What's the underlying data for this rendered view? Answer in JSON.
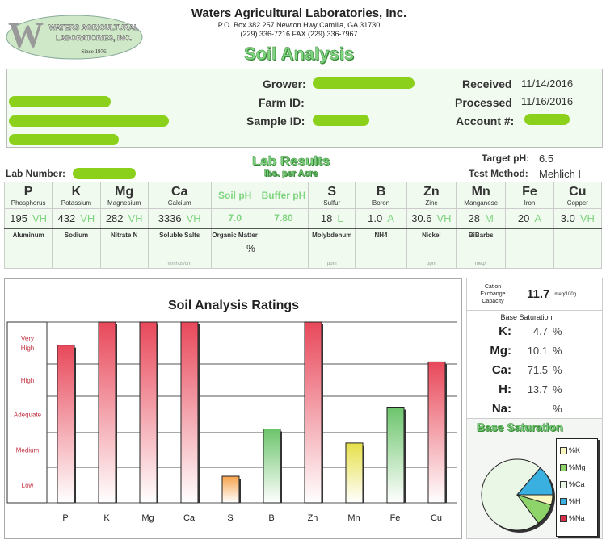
{
  "header": {
    "logo_letter": "W",
    "logo_line1": "WATERS AGRICULTURAL",
    "logo_line2": "LABORATORIES, INC.",
    "logo_since": "Since 1976",
    "company": "Waters Agricultural Laboratories, Inc.",
    "address": "P.O. Box 382  257 Newton Hwy   Camilla, GA  31730",
    "phone": "(229) 336-7216  FAX (229) 336-7967",
    "report_title": "Soil Analysis"
  },
  "info": {
    "grower_label": "Grower:",
    "farm_id_label": "Farm ID:",
    "sample_id_label": "Sample ID:",
    "received_label": "Received",
    "received": "11/14/2016",
    "processed_label": "Processed",
    "processed": "11/16/2016",
    "account_label": "Account #:"
  },
  "lab": {
    "title": "Lab Results",
    "subtitle": "lbs. per Acre",
    "lab_number_label": "Lab Number:",
    "target_ph_label": "Target pH:",
    "target_ph": "6.5",
    "test_method_label": "Test Method:",
    "test_method": "Mehlich I"
  },
  "nutrients": [
    {
      "sym": "P",
      "name": "Phosphorus",
      "value": "195",
      "rating": "VH"
    },
    {
      "sym": "K",
      "name": "Potassium",
      "value": "432",
      "rating": "VH"
    },
    {
      "sym": "Mg",
      "name": "Magnesium",
      "value": "282",
      "rating": "VH"
    },
    {
      "sym": "Ca",
      "name": "Calcium",
      "value": "3336",
      "rating": "VH"
    },
    {
      "sym": "Soil pH",
      "name": "",
      "value": "7.0",
      "rating": ""
    },
    {
      "sym": "Buffer pH",
      "name": "",
      "value": "7.80",
      "rating": ""
    },
    {
      "sym": "S",
      "name": "Sulfur",
      "value": "18",
      "rating": "L"
    },
    {
      "sym": "B",
      "name": "Boron",
      "value": "1.0",
      "rating": "A"
    },
    {
      "sym": "Zn",
      "name": "Zinc",
      "value": "30.6",
      "rating": "VH"
    },
    {
      "sym": "Mn",
      "name": "Manganese",
      "value": "28",
      "rating": "M"
    },
    {
      "sym": "Fe",
      "name": "Iron",
      "value": "20",
      "rating": "A"
    },
    {
      "sym": "Cu",
      "name": "Copper",
      "value": "3.0",
      "rating": "VH"
    }
  ],
  "secondary": [
    {
      "name": "Aluminum",
      "value": "",
      "unit": ""
    },
    {
      "name": "Sodium",
      "value": "",
      "unit": ""
    },
    {
      "name": "Nitrate N",
      "value": "",
      "unit": ""
    },
    {
      "name": "Soluble Salts",
      "value": "",
      "unit": "mmhos/cm"
    },
    {
      "name": "Organic Matter",
      "value": "%",
      "unit": ""
    },
    {
      "name": "",
      "value": "",
      "unit": ""
    },
    {
      "name": "Molybdenum",
      "value": "",
      "unit": "ppm"
    },
    {
      "name": "NH4",
      "value": "",
      "unit": ""
    },
    {
      "name": "Nickel",
      "value": "",
      "unit": "ppm"
    },
    {
      "name": "BiBarbs",
      "value": "",
      "unit": "meq/l"
    },
    {
      "name": "",
      "value": "",
      "unit": ""
    },
    {
      "name": "",
      "value": "",
      "unit": ""
    }
  ],
  "chart_data": [
    {
      "type": "bar",
      "title": "Soil Analysis Ratings",
      "categories": [
        "P",
        "K",
        "Mg",
        "Ca",
        "S",
        "B",
        "Zn",
        "Mn",
        "Fe",
        "Cu"
      ],
      "values": [
        4.45,
        5,
        5,
        5,
        0.75,
        2.1,
        5,
        1.7,
        2.7,
        4.05
      ],
      "y_levels": [
        "Low",
        "Medium",
        "Adequate",
        "High",
        "Very High"
      ],
      "ylim": [
        0,
        5
      ],
      "grid": true,
      "colors": [
        "#e8485a",
        "#e8485a",
        "#e8485a",
        "#e8485a",
        "#f5a24a",
        "#6cc46c",
        "#e8485a",
        "#e6e04a",
        "#6cc46c",
        "#e8485a"
      ]
    },
    {
      "type": "pie",
      "title": "Base Saturation",
      "categories": [
        "%K",
        "%Mg",
        "%Ca",
        "%H",
        "%Na"
      ],
      "values": [
        4.7,
        10.1,
        71.5,
        13.7,
        0
      ],
      "colors": [
        "#fbf7c0",
        "#8ed46a",
        "#eaf7e6",
        "#3ab0e0",
        "#d8304a"
      ],
      "legend": "right"
    }
  ],
  "cec": {
    "label1": "Cation",
    "label2": "Exchange",
    "label3": "Capacity",
    "value": "11.7",
    "unit": "meq/100g"
  },
  "base_saturation": {
    "title": "Base Saturation",
    "rows": [
      {
        "el": "K:",
        "v": "4.7"
      },
      {
        "el": "Mg:",
        "v": "10.1"
      },
      {
        "el": "Ca:",
        "v": "71.5"
      },
      {
        "el": "H:",
        "v": "13.7"
      },
      {
        "el": "Na:",
        "v": ""
      }
    ],
    "pct": "%"
  }
}
